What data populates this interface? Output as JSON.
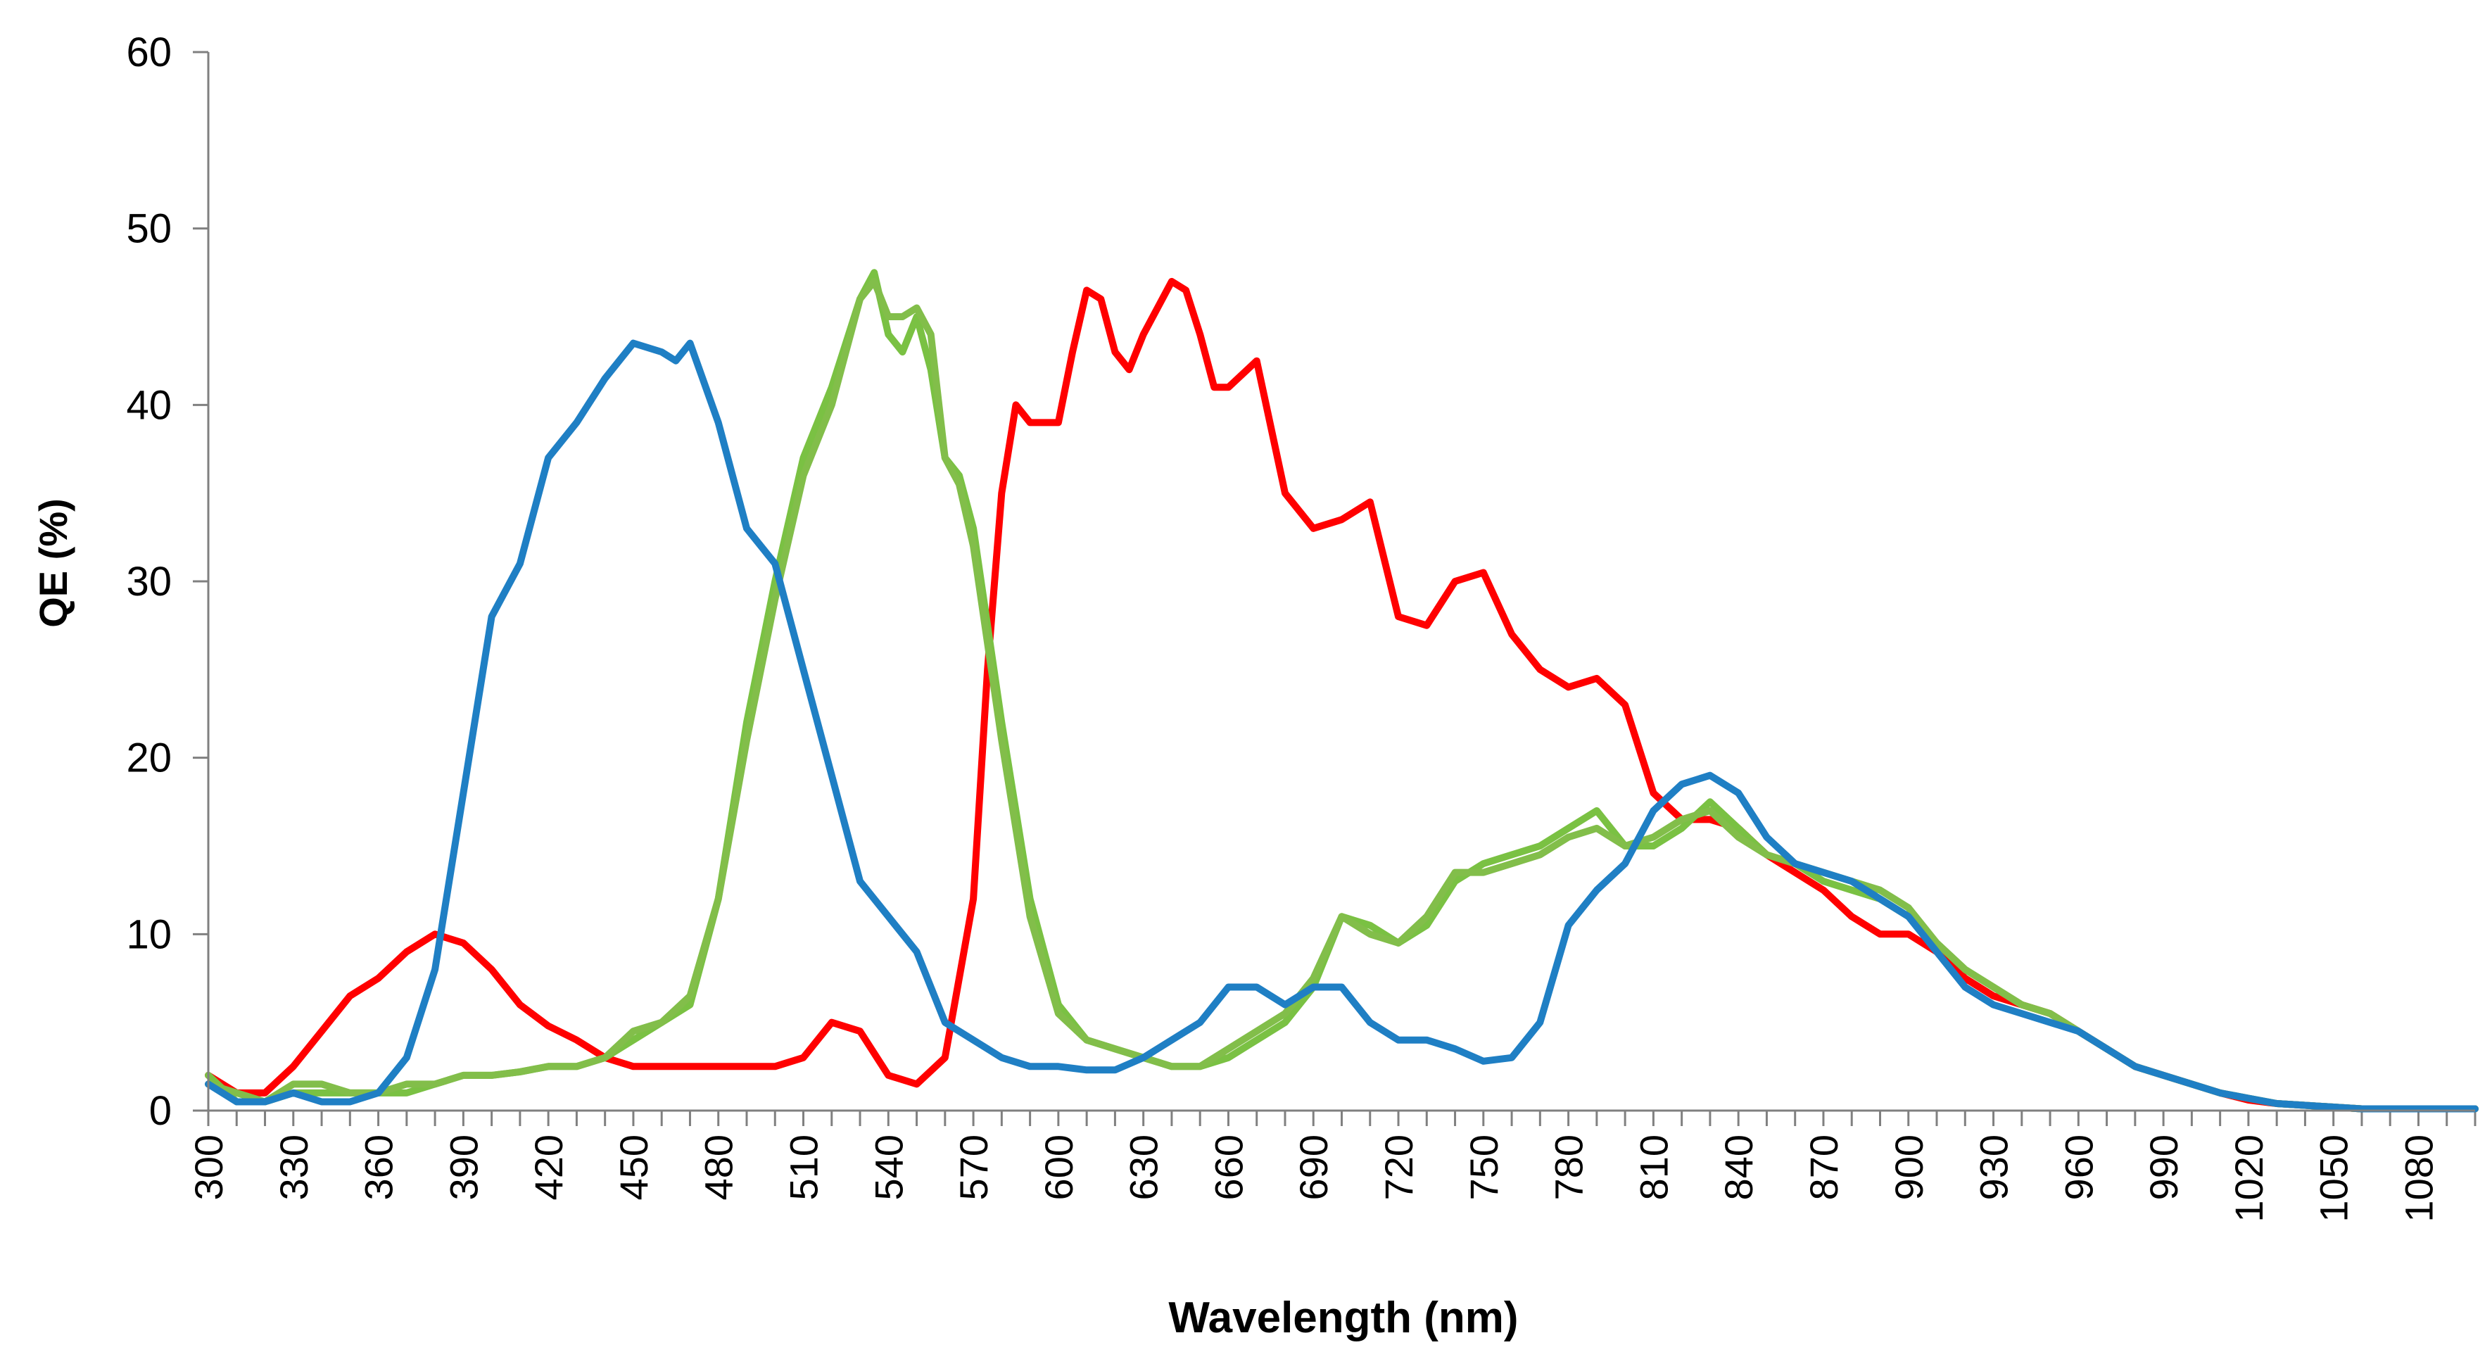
{
  "chart_data": {
    "type": "line",
    "title": "",
    "xlabel": "Wavelength (nm)",
    "ylabel": "QE (%)",
    "xlim": [
      300,
      1100
    ],
    "ylim": [
      0,
      60
    ],
    "grid": false,
    "legend": "none",
    "y_ticks": [
      "0",
      "10",
      "20",
      "30",
      "40",
      "50",
      "60"
    ],
    "x_tick_labels": [
      "300",
      "330",
      "360",
      "390",
      "420",
      "450",
      "480",
      "510",
      "540",
      "570",
      "600",
      "630",
      "660",
      "690",
      "720",
      "750",
      "780",
      "810",
      "840",
      "870",
      "900",
      "930",
      "960",
      "990",
      "1020",
      "1050",
      "1080"
    ],
    "series": [
      {
        "name": "red",
        "color": "#ff0000",
        "x": [
          300,
          310,
          320,
          330,
          340,
          350,
          360,
          370,
          380,
          390,
          400,
          410,
          420,
          430,
          440,
          450,
          460,
          470,
          480,
          490,
          500,
          510,
          520,
          530,
          540,
          550,
          560,
          570,
          575,
          580,
          585,
          590,
          600,
          605,
          610,
          615,
          620,
          625,
          630,
          640,
          645,
          650,
          655,
          660,
          670,
          680,
          690,
          700,
          710,
          720,
          730,
          740,
          750,
          760,
          770,
          780,
          790,
          800,
          810,
          820,
          830,
          840,
          850,
          860,
          870,
          880,
          890,
          900,
          910,
          920,
          930,
          940,
          950,
          960,
          970,
          980,
          990,
          1000,
          1010,
          1020,
          1030,
          1040,
          1050,
          1060,
          1070,
          1080,
          1090,
          1100
        ],
        "values": [
          2,
          1,
          1,
          2.5,
          4.5,
          6.5,
          7.5,
          9,
          10,
          9.5,
          8,
          6,
          4.8,
          4,
          3,
          2.5,
          2.5,
          2.5,
          2.5,
          2.5,
          2.5,
          3,
          5,
          4.5,
          2,
          1.5,
          3,
          12,
          25,
          35,
          40,
          39,
          39,
          43,
          46.5,
          46,
          43,
          42,
          44,
          47,
          46.5,
          44,
          41,
          41,
          42.5,
          35,
          33,
          33.5,
          34.5,
          28,
          27.5,
          30,
          30.5,
          27,
          25,
          24,
          24.5,
          23,
          18,
          16.5,
          16.5,
          16,
          14.5,
          13.5,
          12.5,
          11,
          10,
          10,
          9,
          7.5,
          6.5,
          6,
          5.5,
          4.5,
          3.5,
          2.5,
          2,
          1.5,
          1,
          0.6,
          0.4,
          0.3,
          0.2,
          0.1,
          0.1,
          0.1,
          0.1,
          0.1
        ]
      },
      {
        "name": "green-1",
        "color": "#7ac143",
        "x": [
          300,
          310,
          320,
          330,
          340,
          350,
          360,
          370,
          380,
          390,
          400,
          410,
          420,
          430,
          440,
          450,
          460,
          470,
          480,
          490,
          500,
          510,
          520,
          530,
          535,
          540,
          545,
          550,
          555,
          560,
          565,
          570,
          580,
          590,
          600,
          610,
          620,
          630,
          640,
          650,
          660,
          670,
          680,
          690,
          700,
          710,
          720,
          730,
          740,
          750,
          760,
          770,
          780,
          790,
          800,
          810,
          820,
          830,
          840,
          850,
          860,
          870,
          880,
          890,
          900,
          910,
          920,
          930,
          940,
          950,
          960,
          970,
          980,
          990,
          1000,
          1010,
          1020,
          1030,
          1040,
          1050,
          1060,
          1070,
          1080,
          1090,
          1100
        ],
        "values": [
          2,
          0.5,
          0.5,
          1,
          1,
          1,
          1,
          1,
          1.5,
          2,
          2,
          2.2,
          2.5,
          2.5,
          3,
          4,
          5,
          6,
          12,
          22,
          30,
          37,
          41,
          46,
          47.5,
          44,
          43,
          45,
          42,
          37,
          36,
          33,
          22,
          12,
          6,
          4,
          3.5,
          3,
          2.5,
          2.5,
          3,
          4,
          5,
          7,
          11,
          10.5,
          9.5,
          10.5,
          13,
          14,
          14.5,
          15,
          16,
          17,
          15,
          15,
          16,
          17.5,
          16,
          14.5,
          14,
          13,
          12.5,
          12,
          11,
          9.5,
          8,
          7,
          6,
          5.5,
          4.5,
          3.5,
          2.5,
          2,
          1.5,
          1,
          0.7,
          0.4,
          0.3,
          0.2,
          0.1,
          0.1,
          0.1,
          0.1,
          0.1
        ]
      },
      {
        "name": "green-2",
        "color": "#82be4a",
        "x": [
          300,
          310,
          320,
          330,
          340,
          350,
          360,
          370,
          380,
          390,
          400,
          410,
          420,
          430,
          440,
          450,
          460,
          470,
          480,
          490,
          500,
          510,
          520,
          530,
          535,
          540,
          545,
          550,
          555,
          560,
          565,
          570,
          580,
          590,
          600,
          610,
          620,
          630,
          640,
          650,
          660,
          670,
          680,
          690,
          700,
          710,
          720,
          730,
          740,
          750,
          760,
          770,
          780,
          790,
          800,
          810,
          820,
          830,
          840,
          850,
          860,
          870,
          880,
          890,
          900,
          910,
          920,
          930,
          940,
          950,
          960,
          970,
          980,
          990,
          1000,
          1010,
          1020,
          1030,
          1040,
          1050,
          1060,
          1070,
          1080,
          1090,
          1100
        ],
        "values": [
          1.5,
          1,
          0.5,
          1.5,
          1.5,
          1,
          1,
          1.5,
          1.5,
          2,
          2,
          2.2,
          2.5,
          2.5,
          3,
          4.5,
          5,
          6.5,
          12,
          21,
          29,
          36,
          40,
          46,
          47,
          45,
          45,
          45.5,
          44,
          37,
          35.5,
          32,
          21,
          11,
          5.5,
          4,
          3.5,
          3,
          2.5,
          2.5,
          3.5,
          4.5,
          5.5,
          7.5,
          11,
          10,
          9.5,
          11,
          13.5,
          13.5,
          14,
          14.5,
          15.5,
          16,
          15,
          15.5,
          16.5,
          17,
          15.5,
          14.5,
          14,
          13.5,
          13,
          12.5,
          11.5,
          9.5,
          8,
          7,
          6,
          5.5,
          4.5,
          3.5,
          2.5,
          2,
          1.5,
          1,
          0.7,
          0.4,
          0.3,
          0.2,
          0.1,
          0.1,
          0.1,
          0.1,
          0.1
        ]
      },
      {
        "name": "blue",
        "color": "#1f7fc4",
        "x": [
          300,
          310,
          320,
          330,
          340,
          350,
          360,
          370,
          380,
          390,
          400,
          410,
          420,
          430,
          440,
          450,
          460,
          465,
          470,
          480,
          490,
          500,
          510,
          520,
          530,
          540,
          550,
          560,
          570,
          580,
          590,
          600,
          610,
          620,
          630,
          640,
          650,
          660,
          670,
          680,
          690,
          700,
          710,
          720,
          730,
          740,
          750,
          760,
          770,
          780,
          790,
          800,
          810,
          820,
          830,
          840,
          850,
          860,
          870,
          880,
          890,
          900,
          910,
          920,
          930,
          940,
          950,
          960,
          970,
          980,
          990,
          1000,
          1010,
          1020,
          1030,
          1040,
          1050,
          1060,
          1070,
          1080,
          1090,
          1100
        ],
        "values": [
          1.5,
          0.5,
          0.5,
          1,
          0.5,
          0.5,
          1,
          3,
          8,
          18,
          28,
          31,
          37,
          39,
          41.5,
          43.5,
          43,
          42.5,
          43.5,
          39,
          33,
          31,
          25,
          19,
          13,
          11,
          9,
          5,
          4,
          3,
          2.5,
          2.5,
          2.3,
          2.3,
          3,
          4,
          5,
          7,
          7,
          6,
          7,
          7,
          5,
          4,
          4,
          3.5,
          2.8,
          3,
          5,
          10.5,
          12.5,
          14,
          17,
          18.5,
          19,
          18,
          15.5,
          14,
          13.5,
          13,
          12,
          11,
          9,
          7,
          6,
          5.5,
          5,
          4.5,
          3.5,
          2.5,
          2,
          1.5,
          1,
          0.7,
          0.4,
          0.3,
          0.2,
          0.1,
          0.1,
          0.1,
          0.1,
          0.1
        ]
      }
    ]
  }
}
